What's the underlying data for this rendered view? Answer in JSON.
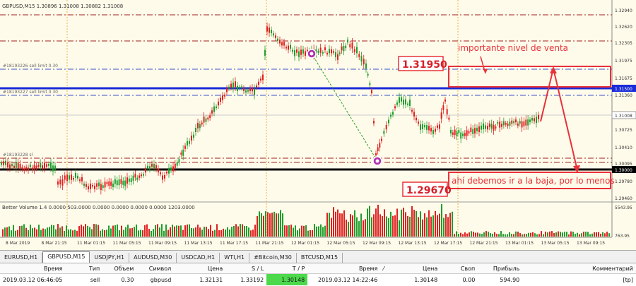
{
  "chart": {
    "symbol_info": "GBPUSD,M15  1.30896 1.31008 1.30882 1.31008",
    "order_label_1": "#18193226 sell limit 0.30",
    "order_label_2": "#18193227 sell limit 0.30",
    "order_label_3": "#18193228 sl",
    "price_ticks": [
      "1.32940",
      "1.32620",
      "1.32305",
      "1.31975",
      "1.31675",
      "1.31360",
      "1.31025",
      "1.30725",
      "1.30410",
      "1.30095",
      "1.29780",
      "1.29460"
    ],
    "price_badge_1": "1.31500",
    "price_badge_2": "1.31008",
    "price_badge_3": "1.30000",
    "time_ticks": [
      "8 Mar 2019",
      "8 Mar 21:15",
      "11 Mar 01:15",
      "11 Mar 05:15",
      "11 Mar 09:15",
      "11 Mar 13:15",
      "11 Mar 17:15",
      "11 Mar 21:15",
      "12 Mar 01:15",
      "12 Mar 05:15",
      "12 Mar 09:15",
      "12 Mar 13:15",
      "12 Mar 17:15",
      "12 Mar 21:15",
      "13 Mar 01:15",
      "13 Mar 05:15",
      "13 Mar 09:15"
    ],
    "volume_label": "Better Volume 1.4  0.0000 503.0000 0.0000 0.0000 0.0000 0.0000 1203.0000",
    "volume_ticks": [
      "5543.95",
      "763.95"
    ],
    "annotation_top": "importante nivel de venta",
    "annotation_bottom": "ahí debemos ir a la baja, por lo menos",
    "level_high": "1.31950",
    "level_low": "1.29670",
    "colors": {
      "bull": "#1f9e2c",
      "bear": "#e02020",
      "blue_line": "#1a2bd8",
      "black_line": "#000000",
      "annotation": "#e8323a"
    }
  },
  "tabs": [
    {
      "label": "EURUSD,H1",
      "active": false
    },
    {
      "label": "GBPUSD,M15",
      "active": true
    },
    {
      "label": "USDJPY,H1",
      "active": false
    },
    {
      "label": "AUDUSD,M30",
      "active": false
    },
    {
      "label": "USDCAD,H1",
      "active": false
    },
    {
      "label": "WTI,H1",
      "active": false
    },
    {
      "label": "#Bitcoin,M30",
      "active": false
    },
    {
      "label": "BTCUSD,M15",
      "active": false
    }
  ],
  "trades": {
    "headers": [
      "Время",
      "Тип",
      "Объем",
      "Символ",
      "Цена",
      "S / L",
      "T / P",
      "Время",
      "",
      "Цена",
      "Своп",
      "Прибыль",
      "Комментарий"
    ],
    "row": {
      "open_time": "2019.03.12 06:46:05",
      "type": "sell",
      "volume": "0.30",
      "symbol": "gbpusd",
      "open_price": "1.32131",
      "sl": "1.33192",
      "tp": "1.30148",
      "close_time": "2019.03.12 14:22:46",
      "close_price": "1.30148",
      "swap": "0.00",
      "profit": "594.90",
      "comment": "[tp]"
    }
  }
}
